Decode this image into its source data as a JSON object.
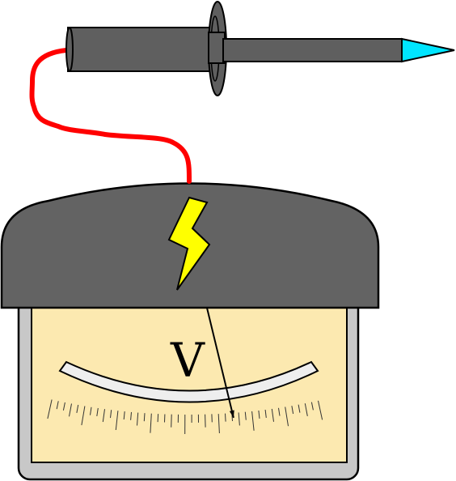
{
  "meter": {
    "unit_symbol": "V",
    "tick_count": 41,
    "needle_level": 0.68
  },
  "icons": {
    "probe": "test-probe-icon",
    "lead": "probe-lead-wire",
    "hazard": "lightning-bolt-icon"
  },
  "colors": {
    "probe_body": "#5f5f5f",
    "probe_tip": "#00e5ff",
    "lead_wire": "#ff0000",
    "meter_cap": "#636363",
    "bolt": "#ffff00",
    "dial_face": "#fce9b0",
    "dial_frame": "#c8c8c8",
    "scale_band": "#eeeeee"
  }
}
